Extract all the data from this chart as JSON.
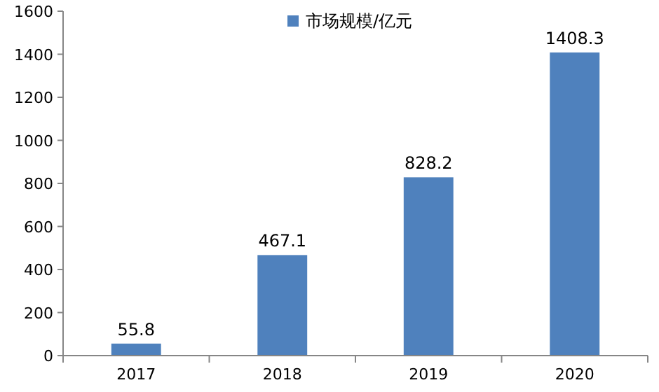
{
  "chart_data": {
    "type": "bar",
    "categories": [
      "2017",
      "2018",
      "2019",
      "2020"
    ],
    "series": [
      {
        "name": "市场规模/亿元",
        "color": "#4f81bd",
        "values": [
          55.8,
          467.1,
          828.2,
          1408.3
        ]
      }
    ],
    "ylim": [
      0,
      1600
    ],
    "yticks": [
      0,
      200,
      400,
      600,
      800,
      1000,
      1200,
      1400,
      1600
    ],
    "data_labels": true,
    "legend": "top",
    "grid": false
  }
}
